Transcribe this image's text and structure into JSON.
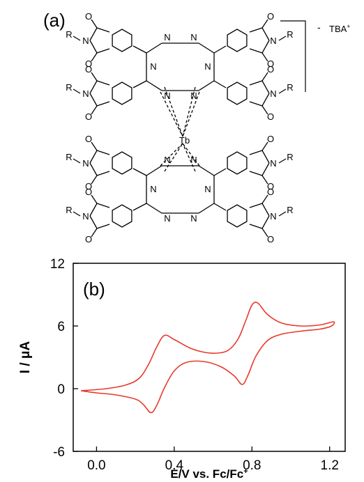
{
  "panel_a": {
    "label": "(a)",
    "counter_ion": "TBA",
    "counter_ion_charge": "+",
    "charge_sign": "-",
    "metal_label": "Tb",
    "atoms": {
      "n": "N",
      "o": "O",
      "r": "R"
    }
  },
  "chart_data": {
    "type": "line",
    "panel_label": "(b)",
    "xlabel": "E/V vs. Fc/Fc",
    "xlabel_sup": "+",
    "ylabel": "I / μA",
    "xlim": [
      -0.12,
      1.28
    ],
    "ylim": [
      -6,
      12
    ],
    "xticks": [
      0.0,
      0.4,
      0.8,
      1.2
    ],
    "xtick_labels": [
      "0.0",
      "0.4",
      "0.8",
      "1.2"
    ],
    "yticks": [
      -6,
      0,
      6,
      12
    ],
    "ytick_labels": [
      "-6",
      "0",
      "6",
      "12"
    ],
    "grid": false,
    "line_color": "#e8392b",
    "series": [
      {
        "points": [
          [
            -0.08,
            -0.2
          ],
          [
            0.05,
            0.0
          ],
          [
            0.15,
            0.35
          ],
          [
            0.22,
            1.0
          ],
          [
            0.27,
            2.4
          ],
          [
            0.31,
            4.0
          ],
          [
            0.35,
            5.1
          ],
          [
            0.4,
            4.7
          ],
          [
            0.48,
            3.9
          ],
          [
            0.55,
            3.5
          ],
          [
            0.62,
            3.4
          ],
          [
            0.68,
            3.7
          ],
          [
            0.73,
            4.8
          ],
          [
            0.77,
            6.6
          ],
          [
            0.8,
            8.0
          ],
          [
            0.83,
            8.2
          ],
          [
            0.88,
            7.1
          ],
          [
            0.95,
            6.3
          ],
          [
            1.05,
            6.0
          ],
          [
            1.15,
            6.1
          ],
          [
            1.22,
            6.4
          ],
          [
            1.21,
            6.0
          ],
          [
            1.15,
            5.7
          ],
          [
            1.05,
            5.5
          ],
          [
            0.95,
            5.2
          ],
          [
            0.88,
            4.6
          ],
          [
            0.82,
            3.1
          ],
          [
            0.78,
            1.3
          ],
          [
            0.75,
            0.4
          ],
          [
            0.71,
            1.2
          ],
          [
            0.64,
            2.1
          ],
          [
            0.55,
            2.6
          ],
          [
            0.46,
            2.5
          ],
          [
            0.4,
            1.7
          ],
          [
            0.35,
            0.1
          ],
          [
            0.31,
            -1.6
          ],
          [
            0.28,
            -2.3
          ],
          [
            0.24,
            -1.5
          ],
          [
            0.2,
            -1.0
          ],
          [
            0.1,
            -0.6
          ],
          [
            0.0,
            -0.4
          ],
          [
            -0.08,
            -0.2
          ]
        ]
      }
    ]
  }
}
